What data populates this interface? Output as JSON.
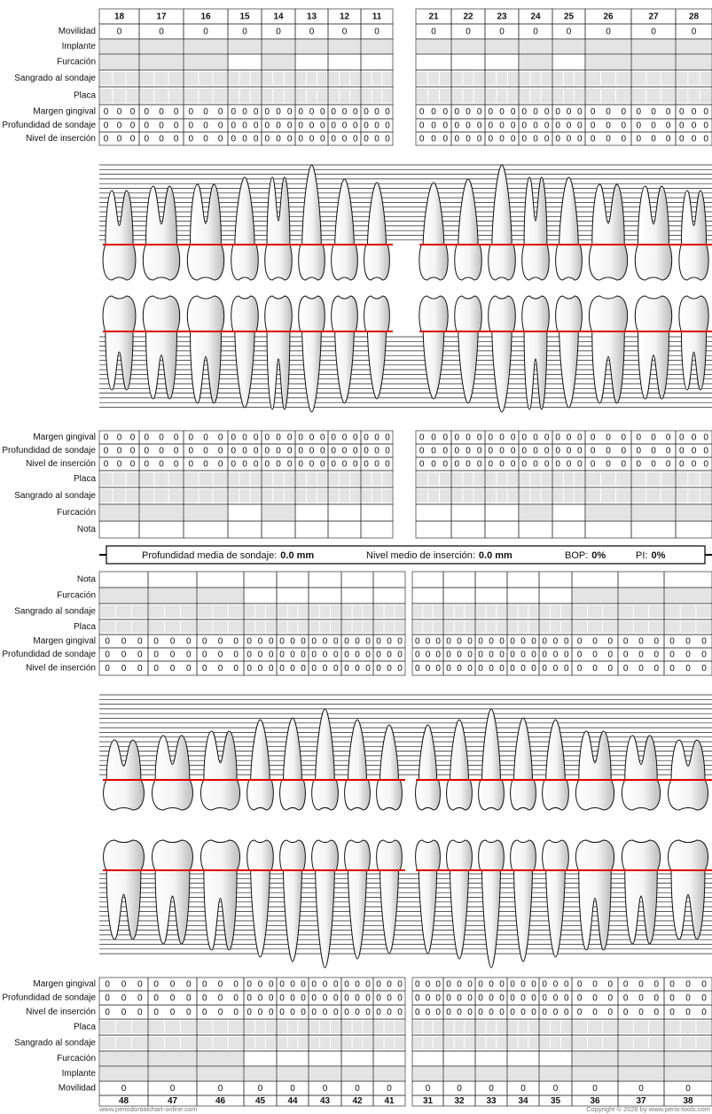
{
  "upper_buccal": {
    "teeth": [
      18,
      17,
      16,
      15,
      14,
      13,
      12,
      11,
      21,
      22,
      23,
      24,
      25,
      26,
      27,
      28
    ],
    "rows": [
      {
        "label": "Movilidad",
        "values": [
          0,
          0,
          0,
          0,
          0,
          0,
          0,
          0,
          0,
          0,
          0,
          0,
          0,
          0,
          0,
          0
        ]
      },
      {
        "label": "Implante"
      },
      {
        "label": "Furcación"
      },
      {
        "label": "Sangrado al sondaje"
      },
      {
        "label": "Placa"
      },
      {
        "label": "Margen gingival",
        "values": [
          [
            0,
            0,
            0
          ],
          [
            0,
            0,
            0
          ],
          [
            0,
            0,
            0
          ],
          [
            0,
            0,
            0
          ],
          [
            0,
            0,
            0
          ],
          [
            0,
            0,
            0
          ],
          [
            0,
            0,
            0
          ],
          [
            0,
            0,
            0
          ],
          [
            0,
            0,
            0
          ],
          [
            0,
            0,
            0
          ],
          [
            0,
            0,
            0
          ],
          [
            0,
            0,
            0
          ],
          [
            0,
            0,
            0
          ],
          [
            0,
            0,
            0
          ],
          [
            0,
            0,
            0
          ],
          [
            0,
            0,
            0
          ]
        ]
      },
      {
        "label": "Profundidad de sondaje",
        "values": [
          [
            0,
            0,
            0
          ],
          [
            0,
            0,
            0
          ],
          [
            0,
            0,
            0
          ],
          [
            0,
            0,
            0
          ],
          [
            0,
            0,
            0
          ],
          [
            0,
            0,
            0
          ],
          [
            0,
            0,
            0
          ],
          [
            0,
            0,
            0
          ],
          [
            0,
            0,
            0
          ],
          [
            0,
            0,
            0
          ],
          [
            0,
            0,
            0
          ],
          [
            0,
            0,
            0
          ],
          [
            0,
            0,
            0
          ],
          [
            0,
            0,
            0
          ],
          [
            0,
            0,
            0
          ],
          [
            0,
            0,
            0
          ]
        ]
      },
      {
        "label": "Nivel de inserción",
        "values": [
          [
            0,
            0,
            0
          ],
          [
            0,
            0,
            0
          ],
          [
            0,
            0,
            0
          ],
          [
            0,
            0,
            0
          ],
          [
            0,
            0,
            0
          ],
          [
            0,
            0,
            0
          ],
          [
            0,
            0,
            0
          ],
          [
            0,
            0,
            0
          ],
          [
            0,
            0,
            0
          ],
          [
            0,
            0,
            0
          ],
          [
            0,
            0,
            0
          ],
          [
            0,
            0,
            0
          ],
          [
            0,
            0,
            0
          ],
          [
            0,
            0,
            0
          ],
          [
            0,
            0,
            0
          ],
          [
            0,
            0,
            0
          ]
        ]
      }
    ]
  },
  "upper_palatal": {
    "rows": [
      {
        "label": "Margen gingival",
        "values": [
          [
            0,
            0,
            0
          ],
          [
            0,
            0,
            0
          ],
          [
            0,
            0,
            0
          ],
          [
            0,
            0,
            0
          ],
          [
            0,
            0,
            0
          ],
          [
            0,
            0,
            0
          ],
          [
            0,
            0,
            0
          ],
          [
            0,
            0,
            0
          ],
          [
            0,
            0,
            0
          ],
          [
            0,
            0,
            0
          ],
          [
            0,
            0,
            0
          ],
          [
            0,
            0,
            0
          ],
          [
            0,
            0,
            0
          ],
          [
            0,
            0,
            0
          ],
          [
            0,
            0,
            0
          ],
          [
            0,
            0,
            0
          ]
        ]
      },
      {
        "label": "Profundidad de sondaje",
        "values": [
          [
            0,
            0,
            0
          ],
          [
            0,
            0,
            0
          ],
          [
            0,
            0,
            0
          ],
          [
            0,
            0,
            0
          ],
          [
            0,
            0,
            0
          ],
          [
            0,
            0,
            0
          ],
          [
            0,
            0,
            0
          ],
          [
            0,
            0,
            0
          ],
          [
            0,
            0,
            0
          ],
          [
            0,
            0,
            0
          ],
          [
            0,
            0,
            0
          ],
          [
            0,
            0,
            0
          ],
          [
            0,
            0,
            0
          ],
          [
            0,
            0,
            0
          ],
          [
            0,
            0,
            0
          ],
          [
            0,
            0,
            0
          ]
        ]
      },
      {
        "label": "Nivel de inserción",
        "values": [
          [
            0,
            0,
            0
          ],
          [
            0,
            0,
            0
          ],
          [
            0,
            0,
            0
          ],
          [
            0,
            0,
            0
          ],
          [
            0,
            0,
            0
          ],
          [
            0,
            0,
            0
          ],
          [
            0,
            0,
            0
          ],
          [
            0,
            0,
            0
          ],
          [
            0,
            0,
            0
          ],
          [
            0,
            0,
            0
          ],
          [
            0,
            0,
            0
          ],
          [
            0,
            0,
            0
          ],
          [
            0,
            0,
            0
          ],
          [
            0,
            0,
            0
          ],
          [
            0,
            0,
            0
          ],
          [
            0,
            0,
            0
          ]
        ]
      },
      {
        "label": "Placa"
      },
      {
        "label": "Sangrado al sondaje"
      },
      {
        "label": "Furcación"
      },
      {
        "label": "Nota"
      }
    ]
  },
  "summary": {
    "probing_label": "Profundidad media de sondaje:",
    "probing_value": "0.0 mm",
    "attachment_label": "Nivel medio de inserción:",
    "attachment_value": "0.0 mm",
    "bop_label": "BOP:",
    "bop_value": "0%",
    "pi_label": "PI:",
    "pi_value": "0%"
  },
  "lower_lingual": {
    "rows": [
      {
        "label": "Nota"
      },
      {
        "label": "Furcación"
      },
      {
        "label": "Sangrado al sondaje"
      },
      {
        "label": "Placa"
      },
      {
        "label": "Margen gingival",
        "values": [
          [
            0,
            0,
            0
          ],
          [
            0,
            0,
            0
          ],
          [
            0,
            0,
            0
          ],
          [
            0,
            0,
            0
          ],
          [
            0,
            0,
            0
          ],
          [
            0,
            0,
            0
          ],
          [
            0,
            0,
            0
          ],
          [
            0,
            0,
            0
          ],
          [
            0,
            0,
            0
          ],
          [
            0,
            0,
            0
          ],
          [
            0,
            0,
            0
          ],
          [
            0,
            0,
            0
          ],
          [
            0,
            0,
            0
          ],
          [
            0,
            0,
            0
          ],
          [
            0,
            0,
            0
          ],
          [
            0,
            0,
            0
          ]
        ]
      },
      {
        "label": "Profundidad de sondaje",
        "values": [
          [
            0,
            0,
            0
          ],
          [
            0,
            0,
            0
          ],
          [
            0,
            0,
            0
          ],
          [
            0,
            0,
            0
          ],
          [
            0,
            0,
            0
          ],
          [
            0,
            0,
            0
          ],
          [
            0,
            0,
            0
          ],
          [
            0,
            0,
            0
          ],
          [
            0,
            0,
            0
          ],
          [
            0,
            0,
            0
          ],
          [
            0,
            0,
            0
          ],
          [
            0,
            0,
            0
          ],
          [
            0,
            0,
            0
          ],
          [
            0,
            0,
            0
          ],
          [
            0,
            0,
            0
          ],
          [
            0,
            0,
            0
          ]
        ]
      },
      {
        "label": "Nivel de inserción",
        "values": [
          [
            0,
            0,
            0
          ],
          [
            0,
            0,
            0
          ],
          [
            0,
            0,
            0
          ],
          [
            0,
            0,
            0
          ],
          [
            0,
            0,
            0
          ],
          [
            0,
            0,
            0
          ],
          [
            0,
            0,
            0
          ],
          [
            0,
            0,
            0
          ],
          [
            0,
            0,
            0
          ],
          [
            0,
            0,
            0
          ],
          [
            0,
            0,
            0
          ],
          [
            0,
            0,
            0
          ],
          [
            0,
            0,
            0
          ],
          [
            0,
            0,
            0
          ],
          [
            0,
            0,
            0
          ],
          [
            0,
            0,
            0
          ]
        ]
      }
    ]
  },
  "lower_buccal": {
    "teeth": [
      48,
      47,
      46,
      45,
      44,
      43,
      42,
      41,
      31,
      32,
      33,
      34,
      35,
      36,
      37,
      38
    ],
    "rows": [
      {
        "label": "Margen gingival",
        "values": [
          [
            0,
            0,
            0
          ],
          [
            0,
            0,
            0
          ],
          [
            0,
            0,
            0
          ],
          [
            0,
            0,
            0
          ],
          [
            0,
            0,
            0
          ],
          [
            0,
            0,
            0
          ],
          [
            0,
            0,
            0
          ],
          [
            0,
            0,
            0
          ],
          [
            0,
            0,
            0
          ],
          [
            0,
            0,
            0
          ],
          [
            0,
            0,
            0
          ],
          [
            0,
            0,
            0
          ],
          [
            0,
            0,
            0
          ],
          [
            0,
            0,
            0
          ],
          [
            0,
            0,
            0
          ],
          [
            0,
            0,
            0
          ]
        ]
      },
      {
        "label": "Profundidad de sondaje",
        "values": [
          [
            0,
            0,
            0
          ],
          [
            0,
            0,
            0
          ],
          [
            0,
            0,
            0
          ],
          [
            0,
            0,
            0
          ],
          [
            0,
            0,
            0
          ],
          [
            0,
            0,
            0
          ],
          [
            0,
            0,
            0
          ],
          [
            0,
            0,
            0
          ],
          [
            0,
            0,
            0
          ],
          [
            0,
            0,
            0
          ],
          [
            0,
            0,
            0
          ],
          [
            0,
            0,
            0
          ],
          [
            0,
            0,
            0
          ],
          [
            0,
            0,
            0
          ],
          [
            0,
            0,
            0
          ],
          [
            0,
            0,
            0
          ]
        ]
      },
      {
        "label": "Nivel de inserción",
        "values": [
          [
            0,
            0,
            0
          ],
          [
            0,
            0,
            0
          ],
          [
            0,
            0,
            0
          ],
          [
            0,
            0,
            0
          ],
          [
            0,
            0,
            0
          ],
          [
            0,
            0,
            0
          ],
          [
            0,
            0,
            0
          ],
          [
            0,
            0,
            0
          ],
          [
            0,
            0,
            0
          ],
          [
            0,
            0,
            0
          ],
          [
            0,
            0,
            0
          ],
          [
            0,
            0,
            0
          ],
          [
            0,
            0,
            0
          ],
          [
            0,
            0,
            0
          ],
          [
            0,
            0,
            0
          ],
          [
            0,
            0,
            0
          ]
        ]
      },
      {
        "label": "Placa"
      },
      {
        "label": "Sangrado al sondaje"
      },
      {
        "label": "Furcación"
      },
      {
        "label": "Implante"
      },
      {
        "label": "Movilidad",
        "values": [
          0,
          0,
          0,
          0,
          0,
          0,
          0,
          0,
          0,
          0,
          0,
          0,
          0,
          0,
          0,
          0
        ]
      }
    ]
  },
  "footer": {
    "left": "www.periodontalchart-online.com",
    "right": "Copyright © 2026 by www.perio-tools.com"
  }
}
